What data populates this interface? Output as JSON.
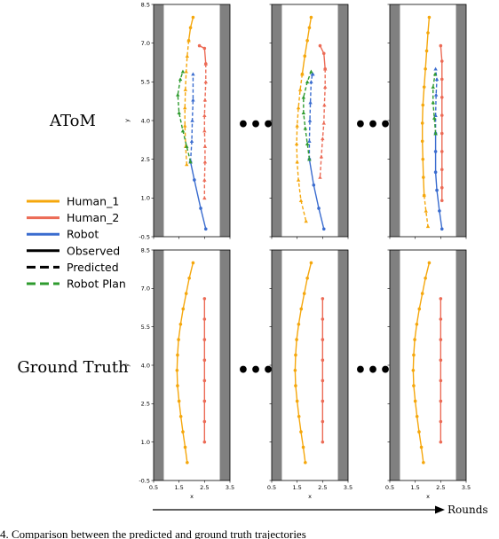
{
  "caption": "4.     Comparison between the predicted and ground truth trajectories",
  "row_labels": [
    "AToM",
    "Ground Truth"
  ],
  "ellipsis": "•••",
  "rounds_label": "Rounds",
  "legend": {
    "entries": [
      {
        "label": "Human_1",
        "color": "#f5a70c",
        "style": "solid"
      },
      {
        "label": "Human_2",
        "color": "#ec6b56",
        "style": "solid"
      },
      {
        "label": "Robot",
        "color": "#3a6ccf",
        "style": "solid"
      },
      {
        "label": "Observed",
        "color": "#000000",
        "style": "solid"
      },
      {
        "label": "Predicted",
        "color": "#000000",
        "style": "dashed"
      },
      {
        "label": "Robot Plan",
        "color": "#2e9b2e",
        "style": "dashed"
      }
    ]
  },
  "chart_data": {
    "type": "line",
    "xlabel": "x",
    "ylabel": "y",
    "xlim": [
      0.5,
      3.5
    ],
    "ylim": [
      -0.5,
      8.5
    ],
    "xticks": [
      "0.5",
      "1.5",
      "2.5",
      "3.5"
    ],
    "yticks": [
      "-0.5",
      "1.0",
      "2.5",
      "4.0",
      "5.5",
      "7.0",
      "8.5"
    ],
    "wall_x": [
      [
        0.5,
        0.9
      ],
      [
        3.1,
        3.5
      ]
    ],
    "colors": {
      "Human_1": "#f5a70c",
      "Human_2": "#ec6b56",
      "Robot": "#3a6ccf",
      "Robot Plan": "#2e9b2e",
      "wall": "#808080"
    },
    "panels": [
      {
        "row": "AToM",
        "round": 1,
        "series": [
          {
            "name": "Human_1",
            "observed": [
              [
                2.05,
                8.0
              ],
              [
                1.95,
                7.6
              ],
              [
                1.88,
                7.1
              ]
            ],
            "predicted": [
              [
                1.88,
                7.1
              ],
              [
                1.82,
                6.5
              ],
              [
                1.78,
                5.9
              ],
              [
                1.75,
                5.2
              ],
              [
                1.73,
                4.5
              ],
              [
                1.73,
                3.8
              ],
              [
                1.76,
                3.0
              ],
              [
                1.8,
                2.3
              ]
            ]
          },
          {
            "name": "Human_2",
            "observed": [
              [
                2.3,
                6.9
              ],
              [
                2.5,
                6.8
              ],
              [
                2.55,
                6.2
              ]
            ],
            "predicted": [
              [
                2.55,
                6.2
              ],
              [
                2.55,
                5.5
              ],
              [
                2.52,
                4.8
              ],
              [
                2.5,
                4.2
              ],
              [
                2.5,
                3.6
              ],
              [
                2.52,
                3.0
              ],
              [
                2.52,
                2.4
              ],
              [
                2.5,
                1.7
              ],
              [
                2.5,
                1.0
              ]
            ]
          },
          {
            "name": "Robot",
            "observed": [
              [
                2.55,
                -0.2
              ],
              [
                2.35,
                0.6
              ],
              [
                2.1,
                1.7
              ],
              [
                1.95,
                2.4
              ]
            ],
            "predicted": [
              [
                1.95,
                2.4
              ],
              [
                2.0,
                3.2
              ],
              [
                2.02,
                4.0
              ],
              [
                2.05,
                4.8
              ],
              [
                2.05,
                5.8
              ]
            ]
          },
          {
            "name": "Robot Plan",
            "predicted": [
              [
                1.95,
                2.4
              ],
              [
                1.8,
                3.0
              ],
              [
                1.65,
                3.6
              ],
              [
                1.5,
                4.3
              ],
              [
                1.45,
                5.0
              ],
              [
                1.55,
                5.6
              ],
              [
                1.65,
                5.9
              ]
            ]
          }
        ]
      },
      {
        "row": "AToM",
        "round": 2,
        "series": [
          {
            "name": "Human_1",
            "observed": [
              [
                2.05,
                8.0
              ],
              [
                1.98,
                7.6
              ],
              [
                1.9,
                7.1
              ],
              [
                1.8,
                6.5
              ],
              [
                1.7,
                5.8
              ]
            ],
            "predicted": [
              [
                1.7,
                5.8
              ],
              [
                1.62,
                5.2
              ],
              [
                1.55,
                4.5
              ],
              [
                1.5,
                3.8
              ],
              [
                1.48,
                3.1
              ],
              [
                1.5,
                2.4
              ],
              [
                1.55,
                1.7
              ],
              [
                1.65,
                0.9
              ],
              [
                1.85,
                0.1
              ]
            ]
          },
          {
            "name": "Human_2",
            "observed": [
              [
                2.4,
                6.9
              ],
              [
                2.55,
                6.6
              ],
              [
                2.6,
                6.0
              ]
            ],
            "predicted": [
              [
                2.6,
                6.0
              ],
              [
                2.6,
                5.3
              ],
              [
                2.57,
                4.6
              ],
              [
                2.55,
                3.9
              ],
              [
                2.5,
                3.3
              ],
              [
                2.45,
                2.6
              ],
              [
                2.4,
                1.8
              ]
            ]
          },
          {
            "name": "Robot",
            "observed": [
              [
                2.55,
                -0.2
              ],
              [
                2.35,
                0.6
              ],
              [
                2.15,
                1.5
              ],
              [
                1.98,
                2.5
              ]
            ],
            "predicted": [
              [
                1.98,
                2.5
              ],
              [
                1.98,
                3.2
              ],
              [
                2.0,
                4.0
              ],
              [
                2.02,
                4.7
              ],
              [
                2.05,
                5.5
              ],
              [
                2.1,
                5.8
              ],
              [
                2.12,
                5.8
              ]
            ]
          },
          {
            "name": "Robot Plan",
            "predicted": [
              [
                1.98,
                2.5
              ],
              [
                1.9,
                3.1
              ],
              [
                1.82,
                3.7
              ],
              [
                1.75,
                4.3
              ],
              [
                1.75,
                4.9
              ],
              [
                1.9,
                5.5
              ],
              [
                2.05,
                5.9
              ]
            ]
          }
        ]
      },
      {
        "row": "AToM",
        "round": 3,
        "series": [
          {
            "name": "Human_1",
            "observed": [
              [
                2.05,
                8.0
              ],
              [
                2.0,
                7.4
              ],
              [
                1.95,
                6.7
              ],
              [
                1.9,
                6.0
              ],
              [
                1.85,
                5.3
              ],
              [
                1.8,
                4.6
              ],
              [
                1.78,
                3.9
              ],
              [
                1.78,
                3.2
              ],
              [
                1.8,
                2.5
              ],
              [
                1.82,
                1.8
              ],
              [
                1.85,
                1.1
              ]
            ],
            "predicted": [
              [
                1.85,
                1.1
              ],
              [
                1.92,
                0.5
              ],
              [
                2.0,
                -0.1
              ]
            ]
          },
          {
            "name": "Human_2",
            "observed": [
              [
                2.5,
                6.9
              ],
              [
                2.55,
                6.3
              ],
              [
                2.55,
                5.6
              ],
              [
                2.55,
                4.9
              ],
              [
                2.55,
                4.2
              ],
              [
                2.55,
                3.5
              ],
              [
                2.55,
                2.8
              ],
              [
                2.55,
                2.1
              ],
              [
                2.55,
                1.4
              ],
              [
                2.55,
                0.9
              ]
            ],
            "predicted": []
          },
          {
            "name": "Robot",
            "observed": [
              [
                2.55,
                -0.2
              ],
              [
                2.45,
                0.5
              ],
              [
                2.35,
                1.3
              ],
              [
                2.3,
                2.0
              ],
              [
                2.3,
                2.8
              ],
              [
                2.3,
                3.5
              ]
            ],
            "predicted": [
              [
                2.3,
                3.5
              ],
              [
                2.3,
                4.2
              ],
              [
                2.32,
                5.0
              ],
              [
                2.35,
                5.6
              ],
              [
                2.3,
                6.0
              ]
            ]
          },
          {
            "name": "Robot Plan",
            "predicted": [
              [
                2.3,
                3.5
              ],
              [
                2.25,
                4.1
              ],
              [
                2.2,
                4.7
              ],
              [
                2.2,
                5.3
              ],
              [
                2.28,
                5.8
              ]
            ]
          }
        ]
      },
      {
        "row": "Ground Truth",
        "round": 1,
        "series": [
          {
            "name": "Human_1",
            "observed": [
              [
                2.05,
                8.0
              ],
              [
                1.9,
                7.4
              ],
              [
                1.78,
                6.8
              ],
              [
                1.66,
                6.2
              ],
              [
                1.56,
                5.6
              ],
              [
                1.48,
                5.0
              ],
              [
                1.44,
                4.4
              ],
              [
                1.42,
                3.8
              ],
              [
                1.44,
                3.2
              ],
              [
                1.5,
                2.6
              ],
              [
                1.57,
                2.0
              ],
              [
                1.65,
                1.4
              ],
              [
                1.74,
                0.8
              ],
              [
                1.82,
                0.2
              ]
            ]
          },
          {
            "name": "Human_2",
            "observed": [
              [
                2.5,
                6.6
              ],
              [
                2.5,
                5.8
              ],
              [
                2.5,
                5.0
              ],
              [
                2.5,
                4.2
              ],
              [
                2.5,
                3.4
              ],
              [
                2.5,
                2.6
              ],
              [
                2.5,
                1.8
              ],
              [
                2.5,
                1.0
              ]
            ]
          }
        ]
      },
      {
        "row": "Ground Truth",
        "round": 2,
        "series": [
          {
            "name": "Human_1",
            "observed": [
              [
                2.05,
                8.0
              ],
              [
                1.9,
                7.4
              ],
              [
                1.78,
                6.8
              ],
              [
                1.66,
                6.2
              ],
              [
                1.56,
                5.6
              ],
              [
                1.48,
                5.0
              ],
              [
                1.44,
                4.4
              ],
              [
                1.42,
                3.8
              ],
              [
                1.44,
                3.2
              ],
              [
                1.5,
                2.6
              ],
              [
                1.57,
                2.0
              ],
              [
                1.65,
                1.4
              ],
              [
                1.74,
                0.8
              ],
              [
                1.82,
                0.2
              ]
            ]
          },
          {
            "name": "Human_2",
            "observed": [
              [
                2.5,
                6.6
              ],
              [
                2.5,
                5.8
              ],
              [
                2.5,
                5.0
              ],
              [
                2.5,
                4.2
              ],
              [
                2.5,
                3.4
              ],
              [
                2.5,
                2.6
              ],
              [
                2.5,
                1.8
              ],
              [
                2.5,
                1.0
              ]
            ]
          }
        ]
      },
      {
        "row": "Ground Truth",
        "round": 3,
        "series": [
          {
            "name": "Human_1",
            "observed": [
              [
                2.05,
                8.0
              ],
              [
                1.9,
                7.4
              ],
              [
                1.78,
                6.8
              ],
              [
                1.66,
                6.2
              ],
              [
                1.56,
                5.6
              ],
              [
                1.48,
                5.0
              ],
              [
                1.44,
                4.4
              ],
              [
                1.42,
                3.8
              ],
              [
                1.44,
                3.2
              ],
              [
                1.5,
                2.6
              ],
              [
                1.57,
                2.0
              ],
              [
                1.65,
                1.4
              ],
              [
                1.74,
                0.8
              ],
              [
                1.82,
                0.2
              ]
            ]
          },
          {
            "name": "Human_2",
            "observed": [
              [
                2.5,
                6.6
              ],
              [
                2.5,
                5.8
              ],
              [
                2.5,
                5.0
              ],
              [
                2.5,
                4.2
              ],
              [
                2.5,
                3.4
              ],
              [
                2.5,
                2.6
              ],
              [
                2.5,
                1.8
              ],
              [
                2.5,
                1.0
              ]
            ]
          }
        ]
      }
    ]
  }
}
